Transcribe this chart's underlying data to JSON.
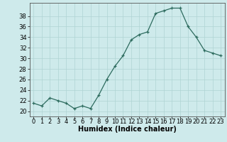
{
  "x": [
    0,
    1,
    2,
    3,
    4,
    5,
    6,
    7,
    8,
    9,
    10,
    11,
    12,
    13,
    14,
    15,
    16,
    17,
    18,
    19,
    20,
    21,
    22,
    23
  ],
  "y": [
    21.5,
    21.0,
    22.5,
    22.0,
    21.5,
    20.5,
    21.0,
    20.5,
    23.0,
    26.0,
    28.5,
    30.5,
    33.5,
    34.5,
    35.0,
    38.5,
    39.0,
    39.5,
    39.5,
    36.0,
    34.0,
    31.5,
    31.0,
    30.5
  ],
  "line_color": "#2d6b5e",
  "marker": "+",
  "marker_size": 3,
  "bg_color": "#ceeaeb",
  "grid_color": "#afd4d4",
  "xlabel": "Humidex (Indice chaleur)",
  "ylabel_ticks": [
    20,
    22,
    24,
    26,
    28,
    30,
    32,
    34,
    36,
    38
  ],
  "ylim": [
    19.0,
    40.5
  ],
  "xlim": [
    -0.5,
    23.5
  ],
  "xticks": [
    0,
    1,
    2,
    3,
    4,
    5,
    6,
    7,
    8,
    9,
    10,
    11,
    12,
    13,
    14,
    15,
    16,
    17,
    18,
    19,
    20,
    21,
    22,
    23
  ],
  "label_fontsize": 7,
  "tick_fontsize": 6
}
